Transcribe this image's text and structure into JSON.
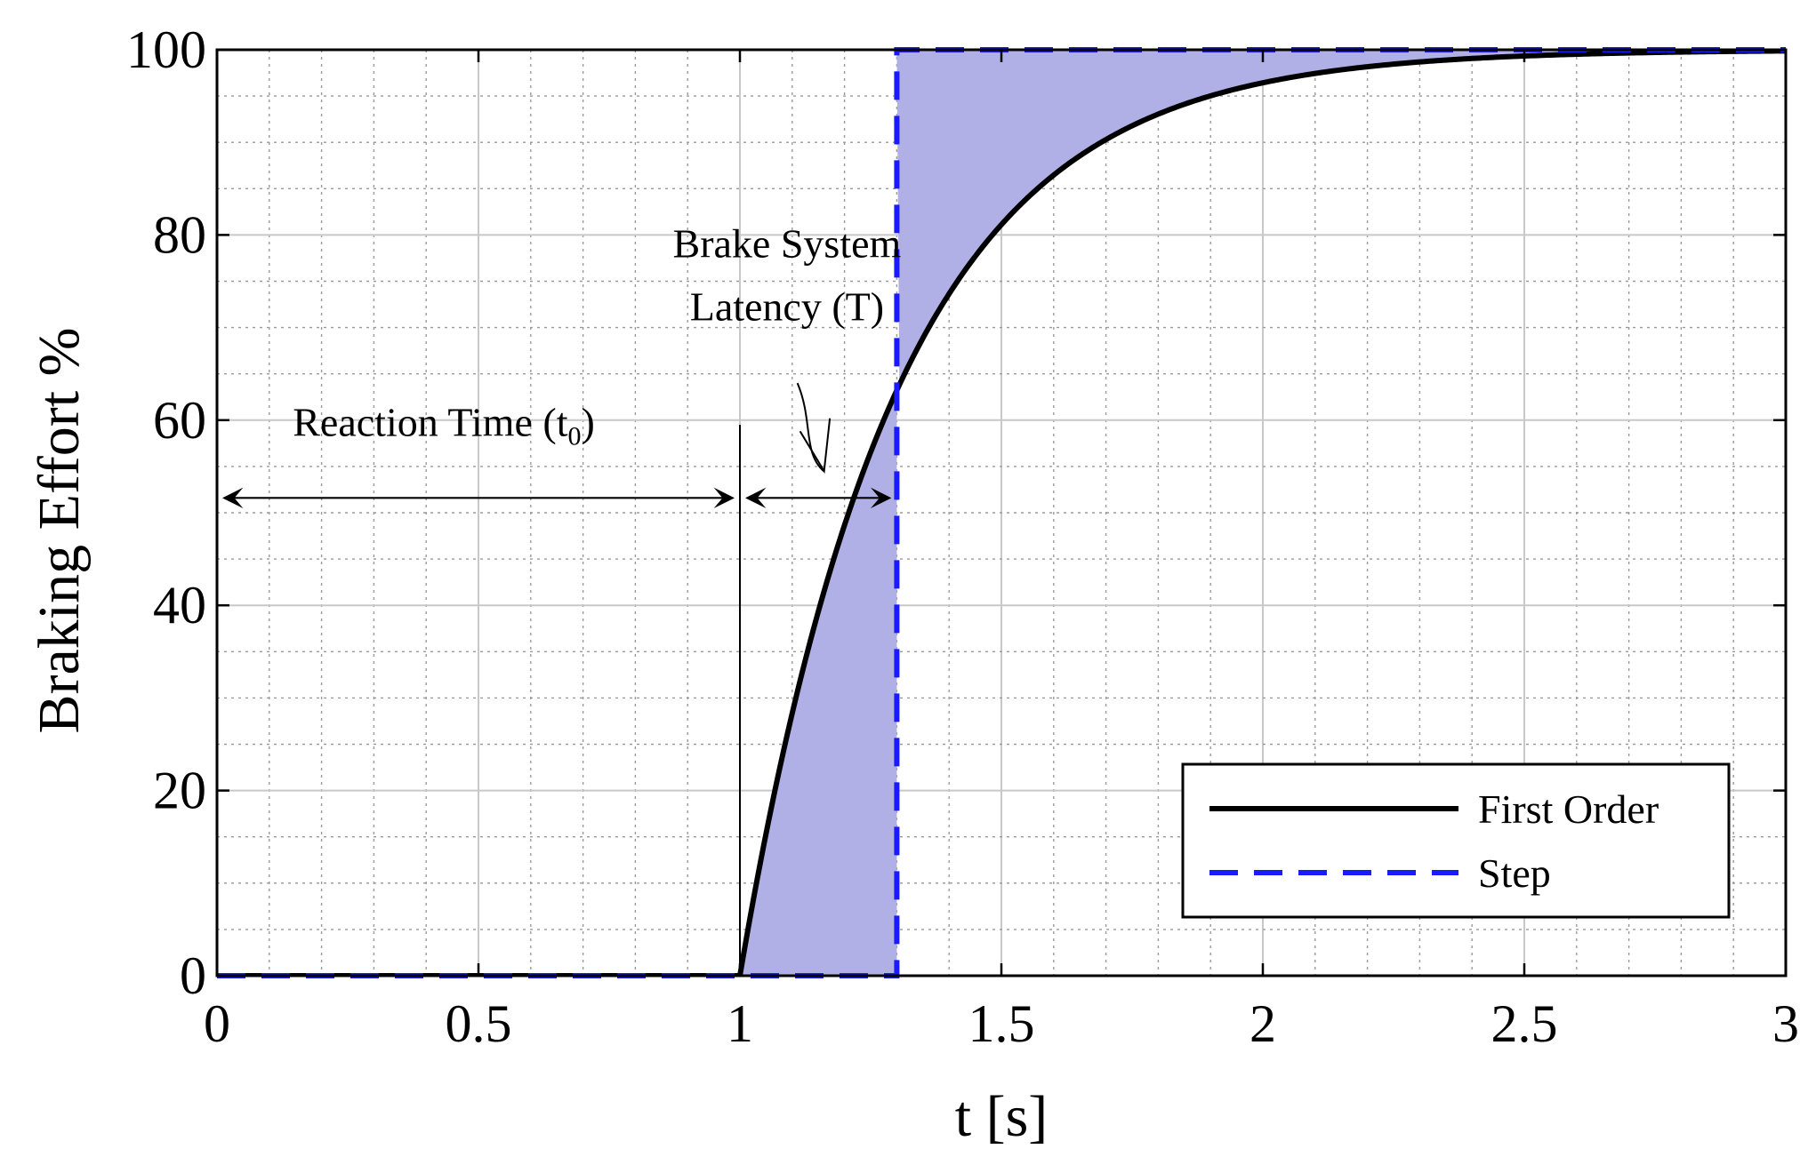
{
  "chart_data": {
    "type": "line",
    "xlabel": "t [s]",
    "ylabel": "Braking Effort %",
    "xlim": [
      0,
      3
    ],
    "ylim": [
      0,
      100
    ],
    "x_ticks": [
      0,
      0.5,
      1,
      1.5,
      2,
      2.5,
      3
    ],
    "x_tick_labels": [
      "0",
      "0.5",
      "1",
      "1.5",
      "2",
      "2.5",
      "3"
    ],
    "y_ticks": [
      0,
      20,
      40,
      60,
      80,
      100
    ],
    "y_tick_labels": [
      "0",
      "20",
      "40",
      "60",
      "80",
      "100"
    ],
    "grid": true,
    "minor_grid": true,
    "legend_position": "bottom-right",
    "reaction_time_s": 1.0,
    "latency_s": 0.3,
    "series": [
      {
        "name": "First Order",
        "style": "solid",
        "color": "#000000",
        "x": [
          0,
          1.0,
          1.05,
          1.1,
          1.15,
          1.2,
          1.25,
          1.3,
          1.4,
          1.5,
          1.6,
          1.7,
          1.8,
          1.9,
          2.0,
          2.2,
          2.4,
          2.6,
          2.8,
          3.0
        ],
        "y": [
          0,
          0,
          15.4,
          28.3,
          39.3,
          48.7,
          56.5,
          63.2,
          73.6,
          81.1,
          86.5,
          90.4,
          93.1,
          95.1,
          96.5,
          98.2,
          99.1,
          99.5,
          99.8,
          99.9
        ]
      },
      {
        "name": "Step",
        "style": "dashed",
        "color": "#1a1aff",
        "x": [
          0,
          1.3,
          1.3,
          3.0
        ],
        "y": [
          0,
          0,
          100,
          100
        ]
      }
    ],
    "fill_between": {
      "color": "#b0b0e6",
      "description_series": [
        "First Order",
        "Step"
      ]
    },
    "annotations": [
      {
        "id": "reaction",
        "text": "Reaction Time (t",
        "subscript": "0",
        "text_end": ")"
      },
      {
        "id": "latency_line1",
        "text": "Brake System"
      },
      {
        "id": "latency_line2",
        "text": "Latency (T)"
      }
    ]
  }
}
